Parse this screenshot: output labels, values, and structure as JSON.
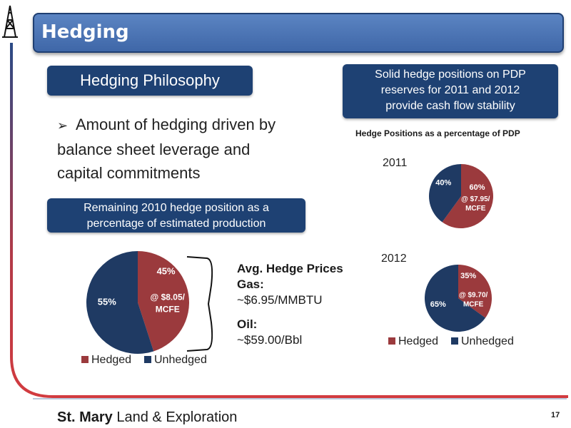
{
  "title": "Hedging",
  "philosophy_box": "Hedging Philosophy",
  "solid_box": [
    "Solid hedge positions on PDP",
    "reserves for 2011 and 2012",
    "provide cash flow stability"
  ],
  "bullet": {
    "symbol": "➢",
    "lines": [
      "Amount of hedging driven by",
      "balance sheet leverage and",
      "capital commitments"
    ]
  },
  "remaining_box": [
    "Remaining 2010 hedge position as a",
    "percentage of estimated production"
  ],
  "avg_prices": {
    "heading": "Avg. Hedge Prices",
    "gas_label": "Gas:",
    "gas_value": "~$6.95/MMBTU",
    "oil_label": "Oil:",
    "oil_value": "~$59.00/Bbl"
  },
  "colors": {
    "hedged": "#9b3a3d",
    "unhedged": "#1f3a63",
    "navy_box": "#1e4173",
    "title_bar": "#4f7ab8",
    "frame": "#c1373f"
  },
  "chart_data": [
    {
      "type": "pie",
      "year": "2010",
      "categories": [
        "Hedged",
        "Unhedged"
      ],
      "values": [
        45,
        55
      ],
      "labels": [
        "45%",
        "55%"
      ],
      "price_note": [
        "@ $8.05/",
        "MCFE"
      ],
      "legend": "bottom"
    },
    {
      "type": "pie",
      "title": "Hedge Positions as a percentage of PDP",
      "year": "2011",
      "categories": [
        "Hedged",
        "Unhedged"
      ],
      "values": [
        60,
        40
      ],
      "labels": [
        "60%",
        "40%"
      ],
      "price_note": [
        "@ $7.95/",
        "MCFE"
      ]
    },
    {
      "type": "pie",
      "year": "2012",
      "categories": [
        "Hedged",
        "Unhedged"
      ],
      "values": [
        35,
        65
      ],
      "labels": [
        "35%",
        "65%"
      ],
      "price_note": [
        "@ $9.70/",
        "MCFE"
      ],
      "legend": "bottom"
    }
  ],
  "legend": {
    "hedged": "Hedged",
    "unhedged": "Unhedged"
  },
  "footer": {
    "logo_bold": "St. Mary",
    "logo_rest": "Land & Exploration",
    "page": "17"
  }
}
